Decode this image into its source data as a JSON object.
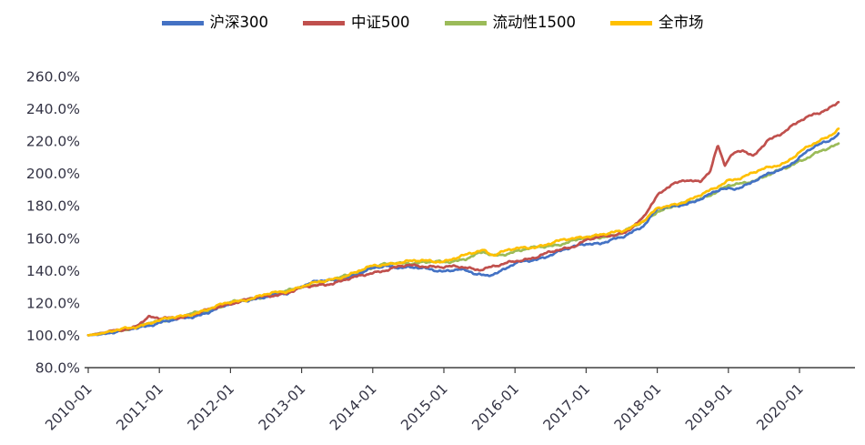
{
  "chart_data": {
    "type": "line",
    "title": "",
    "xlabel": "",
    "ylabel": "",
    "grid": false,
    "legend_position": "top",
    "ylim": [
      80,
      260
    ],
    "x_start_year": 2010,
    "x_years_per_pixel_span": 78.2,
    "y_ticks": [
      {
        "value": 80,
        "label": "80.0%"
      },
      {
        "value": 100,
        "label": "100.0%"
      },
      {
        "value": 120,
        "label": "120.0%"
      },
      {
        "value": 140,
        "label": "140.0%"
      },
      {
        "value": 160,
        "label": "160.0%"
      },
      {
        "value": 180,
        "label": "180.0%"
      },
      {
        "value": 200,
        "label": "200.0%"
      },
      {
        "value": 220,
        "label": "220.0%"
      },
      {
        "value": 240,
        "label": "240.0%"
      },
      {
        "value": 260,
        "label": "260.0%"
      }
    ],
    "x_tick_labels": [
      "2010-01",
      "2011-01",
      "2012-01",
      "2013-01",
      "2014-01",
      "2015-01",
      "2016-01",
      "2017-01",
      "2018-01",
      "2019-01",
      "2020-01"
    ],
    "axis_color": "#404040",
    "tick_label_color": "#333344",
    "series": [
      {
        "name": "沪深300",
        "color": "#4472C4",
        "points": [
          [
            2010.0,
            100
          ],
          [
            2010.3,
            101.5
          ],
          [
            2010.6,
            103.5
          ],
          [
            2010.9,
            107
          ],
          [
            2011.0,
            108
          ],
          [
            2011.2,
            109
          ],
          [
            2011.5,
            112
          ],
          [
            2011.8,
            116
          ],
          [
            2012.0,
            119
          ],
          [
            2012.2,
            122
          ],
          [
            2012.5,
            123.5
          ],
          [
            2012.8,
            126
          ],
          [
            2013.0,
            131
          ],
          [
            2013.2,
            133
          ],
          [
            2013.5,
            134
          ],
          [
            2013.8,
            138
          ],
          [
            2014.0,
            141
          ],
          [
            2014.2,
            143
          ],
          [
            2014.5,
            142
          ],
          [
            2014.8,
            140.5
          ],
          [
            2015.0,
            140
          ],
          [
            2015.2,
            141
          ],
          [
            2015.45,
            137.5
          ],
          [
            2015.6,
            137
          ],
          [
            2015.8,
            140
          ],
          [
            2016.0,
            144
          ],
          [
            2016.3,
            147
          ],
          [
            2016.5,
            150
          ],
          [
            2016.8,
            154
          ],
          [
            2017.0,
            157
          ],
          [
            2017.2,
            157
          ],
          [
            2017.5,
            160
          ],
          [
            2017.8,
            168
          ],
          [
            2018.0,
            178
          ],
          [
            2018.2,
            179
          ],
          [
            2018.45,
            182
          ],
          [
            2018.7,
            186
          ],
          [
            2018.9,
            190
          ],
          [
            2019.1,
            191
          ],
          [
            2019.3,
            194
          ],
          [
            2019.5,
            198
          ],
          [
            2019.8,
            204
          ],
          [
            2020.0,
            210
          ],
          [
            2020.2,
            216
          ],
          [
            2020.4,
            220
          ],
          [
            2020.55,
            225
          ]
        ]
      },
      {
        "name": "中证500",
        "color": "#C0504D",
        "points": [
          [
            2010.0,
            100
          ],
          [
            2010.3,
            102
          ],
          [
            2010.6,
            104.5
          ],
          [
            2010.85,
            111
          ],
          [
            2011.0,
            110
          ],
          [
            2011.3,
            111.5
          ],
          [
            2011.5,
            113
          ],
          [
            2011.8,
            117
          ],
          [
            2012.0,
            120
          ],
          [
            2012.3,
            122.5
          ],
          [
            2012.5,
            124
          ],
          [
            2012.8,
            126.5
          ],
          [
            2013.0,
            129
          ],
          [
            2013.3,
            131.5
          ],
          [
            2013.5,
            133
          ],
          [
            2013.8,
            136
          ],
          [
            2014.0,
            139
          ],
          [
            2014.3,
            141.5
          ],
          [
            2014.5,
            143
          ],
          [
            2014.8,
            143
          ],
          [
            2015.0,
            142
          ],
          [
            2015.3,
            142
          ],
          [
            2015.5,
            141
          ],
          [
            2015.8,
            143
          ],
          [
            2016.0,
            146
          ],
          [
            2016.3,
            148.5
          ],
          [
            2016.5,
            151
          ],
          [
            2016.8,
            155
          ],
          [
            2017.0,
            159
          ],
          [
            2017.3,
            161
          ],
          [
            2017.55,
            164
          ],
          [
            2017.8,
            172
          ],
          [
            2018.0,
            186
          ],
          [
            2018.2,
            194
          ],
          [
            2018.4,
            196
          ],
          [
            2018.6,
            194
          ],
          [
            2018.75,
            202
          ],
          [
            2018.85,
            218
          ],
          [
            2018.95,
            206
          ],
          [
            2019.05,
            212
          ],
          [
            2019.2,
            214
          ],
          [
            2019.35,
            210
          ],
          [
            2019.55,
            221
          ],
          [
            2019.8,
            226
          ],
          [
            2020.0,
            232
          ],
          [
            2020.2,
            237
          ],
          [
            2020.4,
            240
          ],
          [
            2020.55,
            244
          ]
        ]
      },
      {
        "name": "流动性1500",
        "color": "#9BBB59",
        "points": [
          [
            2010.0,
            100
          ],
          [
            2010.3,
            102
          ],
          [
            2010.6,
            104
          ],
          [
            2010.9,
            108
          ],
          [
            2011.0,
            109
          ],
          [
            2011.3,
            111
          ],
          [
            2011.5,
            113.5
          ],
          [
            2011.8,
            117
          ],
          [
            2012.0,
            120
          ],
          [
            2012.3,
            122.5
          ],
          [
            2012.5,
            124.5
          ],
          [
            2012.8,
            127
          ],
          [
            2013.0,
            130
          ],
          [
            2013.3,
            132.5
          ],
          [
            2013.5,
            135
          ],
          [
            2013.8,
            139
          ],
          [
            2014.0,
            142
          ],
          [
            2014.3,
            144.5
          ],
          [
            2014.5,
            145
          ],
          [
            2014.8,
            145
          ],
          [
            2015.0,
            145
          ],
          [
            2015.3,
            147.5
          ],
          [
            2015.55,
            151
          ],
          [
            2015.7,
            149
          ],
          [
            2015.9,
            151
          ],
          [
            2016.0,
            152
          ],
          [
            2016.3,
            154
          ],
          [
            2016.5,
            155.5
          ],
          [
            2016.8,
            158
          ],
          [
            2017.0,
            160
          ],
          [
            2017.3,
            161.5
          ],
          [
            2017.5,
            163
          ],
          [
            2017.8,
            170
          ],
          [
            2018.0,
            177
          ],
          [
            2018.2,
            179
          ],
          [
            2018.5,
            183
          ],
          [
            2018.8,
            188
          ],
          [
            2019.0,
            192
          ],
          [
            2019.2,
            194
          ],
          [
            2019.5,
            198
          ],
          [
            2019.8,
            203
          ],
          [
            2020.0,
            208
          ],
          [
            2020.2,
            212
          ],
          [
            2020.4,
            215
          ],
          [
            2020.55,
            218
          ]
        ]
      },
      {
        "name": "全市场",
        "color": "#FFC000",
        "points": [
          [
            2010.0,
            100
          ],
          [
            2010.3,
            102.2
          ],
          [
            2010.6,
            104.3
          ],
          [
            2010.9,
            108.5
          ],
          [
            2011.0,
            109.2
          ],
          [
            2011.3,
            111.5
          ],
          [
            2011.5,
            114
          ],
          [
            2011.8,
            117.5
          ],
          [
            2012.0,
            120.5
          ],
          [
            2012.3,
            123
          ],
          [
            2012.5,
            125
          ],
          [
            2012.8,
            127.5
          ],
          [
            2013.0,
            130.5
          ],
          [
            2013.3,
            133
          ],
          [
            2013.5,
            135.5
          ],
          [
            2013.8,
            139.5
          ],
          [
            2014.0,
            142.5
          ],
          [
            2014.3,
            145
          ],
          [
            2014.5,
            145.5
          ],
          [
            2014.8,
            146
          ],
          [
            2015.0,
            146
          ],
          [
            2015.3,
            149
          ],
          [
            2015.55,
            153
          ],
          [
            2015.7,
            150
          ],
          [
            2015.9,
            152.5
          ],
          [
            2016.0,
            153
          ],
          [
            2016.3,
            155
          ],
          [
            2016.5,
            157
          ],
          [
            2016.8,
            159.5
          ],
          [
            2017.0,
            161.5
          ],
          [
            2017.3,
            162.5
          ],
          [
            2017.5,
            164
          ],
          [
            2017.8,
            171
          ],
          [
            2018.0,
            178
          ],
          [
            2018.2,
            180
          ],
          [
            2018.5,
            185
          ],
          [
            2018.8,
            190
          ],
          [
            2019.0,
            196
          ],
          [
            2019.2,
            198
          ],
          [
            2019.5,
            202.5
          ],
          [
            2019.8,
            207
          ],
          [
            2020.0,
            213
          ],
          [
            2020.2,
            218
          ],
          [
            2020.4,
            223
          ],
          [
            2020.55,
            228
          ]
        ]
      }
    ],
    "draw_order": [
      2,
      0,
      1,
      3
    ]
  }
}
